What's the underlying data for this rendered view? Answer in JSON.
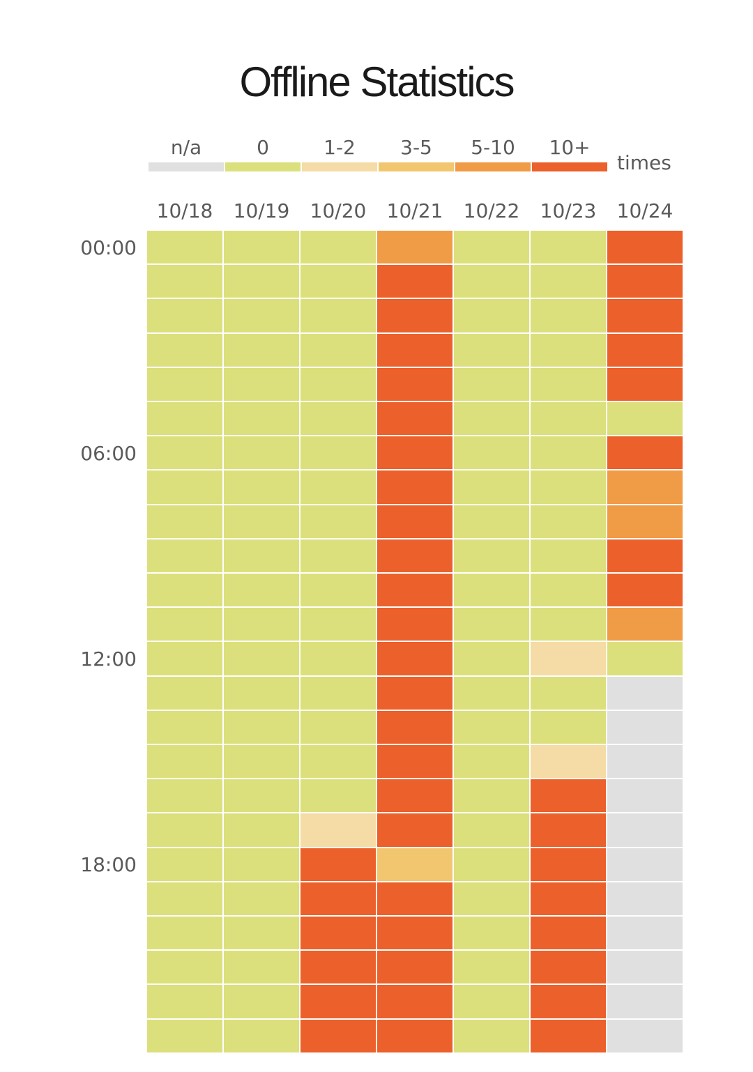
{
  "title": "Offline Statistics",
  "legend": {
    "unit": "times",
    "items": [
      {
        "label": "n/a",
        "color": "#e0e0e0"
      },
      {
        "label": "0",
        "color": "#dbe07c"
      },
      {
        "label": "1-2",
        "color": "#f5dba6"
      },
      {
        "label": "3-5",
        "color": "#f2c66e"
      },
      {
        "label": "5-10",
        "color": "#f09b45"
      },
      {
        "label": "10+",
        "color": "#eb602b"
      }
    ]
  },
  "chart_data": {
    "type": "heatmap",
    "title": "Offline Statistics",
    "columns": [
      "10/18",
      "10/19",
      "10/20",
      "10/21",
      "10/22",
      "10/23",
      "10/24"
    ],
    "row_tick_labels": [
      "00:00",
      "06:00",
      "12:00",
      "18:00"
    ],
    "rows": 24,
    "categories": [
      "n/a",
      "0",
      "1-2",
      "3-5",
      "5-10",
      "10+"
    ],
    "values": [
      [
        "0",
        "0",
        "0",
        "5-10",
        "0",
        "0",
        "10+"
      ],
      [
        "0",
        "0",
        "0",
        "10+",
        "0",
        "0",
        "10+"
      ],
      [
        "0",
        "0",
        "0",
        "10+",
        "0",
        "0",
        "10+"
      ],
      [
        "0",
        "0",
        "0",
        "10+",
        "0",
        "0",
        "10+"
      ],
      [
        "0",
        "0",
        "0",
        "10+",
        "0",
        "0",
        "10+"
      ],
      [
        "0",
        "0",
        "0",
        "10+",
        "0",
        "0",
        "0"
      ],
      [
        "0",
        "0",
        "0",
        "10+",
        "0",
        "0",
        "10+"
      ],
      [
        "0",
        "0",
        "0",
        "10+",
        "0",
        "0",
        "5-10"
      ],
      [
        "0",
        "0",
        "0",
        "10+",
        "0",
        "0",
        "5-10"
      ],
      [
        "0",
        "0",
        "0",
        "10+",
        "0",
        "0",
        "10+"
      ],
      [
        "0",
        "0",
        "0",
        "10+",
        "0",
        "0",
        "10+"
      ],
      [
        "0",
        "0",
        "0",
        "10+",
        "0",
        "0",
        "5-10"
      ],
      [
        "0",
        "0",
        "0",
        "10+",
        "0",
        "1-2",
        "0"
      ],
      [
        "0",
        "0",
        "0",
        "10+",
        "0",
        "0",
        "n/a"
      ],
      [
        "0",
        "0",
        "0",
        "10+",
        "0",
        "0",
        "n/a"
      ],
      [
        "0",
        "0",
        "0",
        "10+",
        "0",
        "1-2",
        "n/a"
      ],
      [
        "0",
        "0",
        "0",
        "10+",
        "0",
        "10+",
        "n/a"
      ],
      [
        "0",
        "0",
        "1-2",
        "10+",
        "0",
        "10+",
        "n/a"
      ],
      [
        "0",
        "0",
        "10+",
        "3-5",
        "0",
        "10+",
        "n/a"
      ],
      [
        "0",
        "0",
        "10+",
        "10+",
        "0",
        "10+",
        "n/a"
      ],
      [
        "0",
        "0",
        "10+",
        "10+",
        "0",
        "10+",
        "n/a"
      ],
      [
        "0",
        "0",
        "10+",
        "10+",
        "0",
        "10+",
        "n/a"
      ],
      [
        "0",
        "0",
        "10+",
        "10+",
        "0",
        "10+",
        "n/a"
      ],
      [
        "0",
        "0",
        "10+",
        "10+",
        "0",
        "10+",
        "n/a"
      ]
    ]
  }
}
